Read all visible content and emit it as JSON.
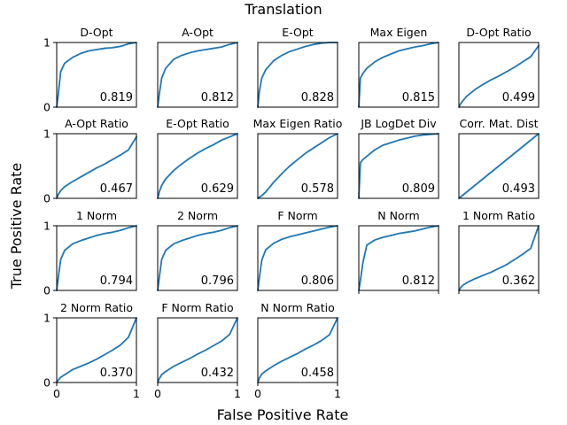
{
  "chart_data": {
    "type": "line",
    "title": "Translation",
    "xlabel": "False Positive Rate",
    "ylabel": "True Positive Rate",
    "xlim": [
      0,
      1
    ],
    "ylim": [
      0,
      1
    ],
    "x_ticks": [
      "0",
      "1"
    ],
    "y_ticks": [
      "0",
      "1"
    ],
    "grid": false,
    "panels": [
      {
        "title": "D-Opt",
        "auc": "0.819",
        "x": [
          0,
          0.02,
          0.05,
          0.1,
          0.2,
          0.3,
          0.4,
          0.5,
          0.6,
          0.7,
          0.8,
          0.9,
          1
        ],
        "y": [
          0,
          0.2,
          0.55,
          0.68,
          0.77,
          0.83,
          0.87,
          0.89,
          0.91,
          0.92,
          0.94,
          0.98,
          1
        ]
      },
      {
        "title": "A-Opt",
        "auc": "0.812",
        "x": [
          0,
          0.02,
          0.05,
          0.1,
          0.2,
          0.3,
          0.4,
          0.5,
          0.6,
          0.7,
          0.8,
          0.9,
          1
        ],
        "y": [
          0,
          0.2,
          0.45,
          0.6,
          0.74,
          0.8,
          0.84,
          0.87,
          0.89,
          0.91,
          0.93,
          0.97,
          1
        ]
      },
      {
        "title": "E-Opt",
        "auc": "0.828",
        "x": [
          0,
          0.02,
          0.05,
          0.1,
          0.2,
          0.3,
          0.4,
          0.5,
          0.6,
          0.7,
          0.8,
          0.9,
          1
        ],
        "y": [
          0,
          0.25,
          0.45,
          0.58,
          0.72,
          0.8,
          0.86,
          0.9,
          0.94,
          0.97,
          0.99,
          1,
          1
        ]
      },
      {
        "title": "Max Eigen",
        "auc": "0.815",
        "x": [
          0,
          0.02,
          0.05,
          0.1,
          0.2,
          0.3,
          0.4,
          0.5,
          0.6,
          0.7,
          0.8,
          0.9,
          1
        ],
        "y": [
          0,
          0.45,
          0.52,
          0.6,
          0.7,
          0.77,
          0.82,
          0.87,
          0.9,
          0.93,
          0.95,
          0.98,
          1
        ]
      },
      {
        "title": "D-Opt Ratio",
        "auc": "0.499",
        "x": [
          0,
          0.02,
          0.05,
          0.1,
          0.2,
          0.3,
          0.4,
          0.5,
          0.6,
          0.7,
          0.8,
          0.9,
          1
        ],
        "y": [
          0,
          0.05,
          0.1,
          0.17,
          0.27,
          0.35,
          0.42,
          0.48,
          0.55,
          0.62,
          0.7,
          0.78,
          0.95
        ]
      },
      {
        "title": "A-Opt Ratio",
        "auc": "0.467",
        "x": [
          0,
          0.02,
          0.05,
          0.1,
          0.2,
          0.3,
          0.4,
          0.5,
          0.6,
          0.7,
          0.8,
          0.9,
          1
        ],
        "y": [
          0,
          0.06,
          0.12,
          0.18,
          0.26,
          0.33,
          0.4,
          0.47,
          0.53,
          0.6,
          0.67,
          0.75,
          0.95
        ]
      },
      {
        "title": "E-Opt Ratio",
        "auc": "0.629",
        "x": [
          0,
          0.02,
          0.05,
          0.1,
          0.2,
          0.3,
          0.4,
          0.5,
          0.6,
          0.7,
          0.8,
          0.9,
          1
        ],
        "y": [
          0,
          0.1,
          0.2,
          0.3,
          0.43,
          0.53,
          0.62,
          0.7,
          0.77,
          0.83,
          0.9,
          0.95,
          1
        ]
      },
      {
        "title": "Max Eigen Ratio",
        "auc": "0.578",
        "x": [
          0,
          0.02,
          0.05,
          0.1,
          0.2,
          0.3,
          0.4,
          0.5,
          0.6,
          0.7,
          0.8,
          0.9,
          1
        ],
        "y": [
          0,
          0.02,
          0.04,
          0.1,
          0.25,
          0.38,
          0.5,
          0.6,
          0.7,
          0.78,
          0.86,
          0.94,
          1
        ]
      },
      {
        "title": "JB LogDet Div",
        "auc": "0.809",
        "x": [
          0,
          0.02,
          0.05,
          0.1,
          0.2,
          0.3,
          0.4,
          0.5,
          0.6,
          0.7,
          0.8,
          0.9,
          1
        ],
        "y": [
          0,
          0.55,
          0.6,
          0.65,
          0.75,
          0.82,
          0.86,
          0.9,
          0.93,
          0.96,
          0.98,
          0.99,
          1
        ]
      },
      {
        "title": "Corr. Mat. Dist",
        "auc": "0.493",
        "x": [
          0,
          0.25,
          0.5,
          0.75,
          1
        ],
        "y": [
          0,
          0.25,
          0.5,
          0.75,
          1
        ]
      },
      {
        "title": "1 Norm",
        "auc": "0.794",
        "x": [
          0,
          0.02,
          0.05,
          0.1,
          0.2,
          0.3,
          0.4,
          0.5,
          0.6,
          0.7,
          0.8,
          0.9,
          1
        ],
        "y": [
          0,
          0.2,
          0.48,
          0.62,
          0.72,
          0.77,
          0.81,
          0.85,
          0.88,
          0.9,
          0.93,
          0.97,
          1
        ]
      },
      {
        "title": "2 Norm",
        "auc": "0.796",
        "x": [
          0,
          0.02,
          0.05,
          0.1,
          0.2,
          0.3,
          0.4,
          0.5,
          0.6,
          0.7,
          0.8,
          0.9,
          1
        ],
        "y": [
          0,
          0.2,
          0.48,
          0.62,
          0.72,
          0.77,
          0.81,
          0.85,
          0.88,
          0.9,
          0.93,
          0.97,
          1
        ]
      },
      {
        "title": "F Norm",
        "auc": "0.806",
        "x": [
          0,
          0.02,
          0.05,
          0.1,
          0.2,
          0.3,
          0.4,
          0.5,
          0.6,
          0.7,
          0.8,
          0.9,
          1
        ],
        "y": [
          0,
          0.2,
          0.47,
          0.63,
          0.73,
          0.79,
          0.83,
          0.86,
          0.89,
          0.92,
          0.95,
          0.98,
          1
        ]
      },
      {
        "title": "N Norm",
        "auc": "0.812",
        "x": [
          0,
          0.02,
          0.05,
          0.1,
          0.2,
          0.3,
          0.4,
          0.5,
          0.6,
          0.7,
          0.8,
          0.9,
          1
        ],
        "y": [
          0,
          0.15,
          0.42,
          0.7,
          0.78,
          0.82,
          0.85,
          0.88,
          0.9,
          0.92,
          0.95,
          0.98,
          1
        ]
      },
      {
        "title": "1 Norm Ratio",
        "auc": "0.362",
        "x": [
          0,
          0.02,
          0.05,
          0.1,
          0.2,
          0.3,
          0.4,
          0.5,
          0.6,
          0.7,
          0.8,
          0.9,
          1
        ],
        "y": [
          0,
          0.04,
          0.08,
          0.12,
          0.18,
          0.23,
          0.28,
          0.34,
          0.4,
          0.48,
          0.56,
          0.65,
          1
        ]
      },
      {
        "title": "2 Norm Ratio",
        "auc": "0.370",
        "x": [
          0,
          0.02,
          0.05,
          0.1,
          0.2,
          0.3,
          0.4,
          0.5,
          0.6,
          0.7,
          0.8,
          0.9,
          1
        ],
        "y": [
          0,
          0.04,
          0.08,
          0.12,
          0.2,
          0.25,
          0.3,
          0.36,
          0.43,
          0.5,
          0.58,
          0.7,
          1
        ]
      },
      {
        "title": "F Norm Ratio",
        "auc": "0.432",
        "x": [
          0,
          0.02,
          0.05,
          0.1,
          0.2,
          0.3,
          0.4,
          0.5,
          0.6,
          0.7,
          0.8,
          0.9,
          1
        ],
        "y": [
          0,
          0.06,
          0.12,
          0.17,
          0.25,
          0.31,
          0.37,
          0.44,
          0.5,
          0.57,
          0.64,
          0.74,
          1
        ]
      },
      {
        "title": "N Norm Ratio",
        "auc": "0.458",
        "x": [
          0,
          0.02,
          0.05,
          0.1,
          0.2,
          0.3,
          0.4,
          0.5,
          0.6,
          0.7,
          0.8,
          0.9,
          1
        ],
        "y": [
          0,
          0.07,
          0.13,
          0.18,
          0.26,
          0.33,
          0.39,
          0.45,
          0.52,
          0.58,
          0.65,
          0.74,
          1
        ]
      }
    ]
  },
  "colors": {
    "line": "#1f77b4",
    "axes": "#000000",
    "background": "#ffffff"
  }
}
